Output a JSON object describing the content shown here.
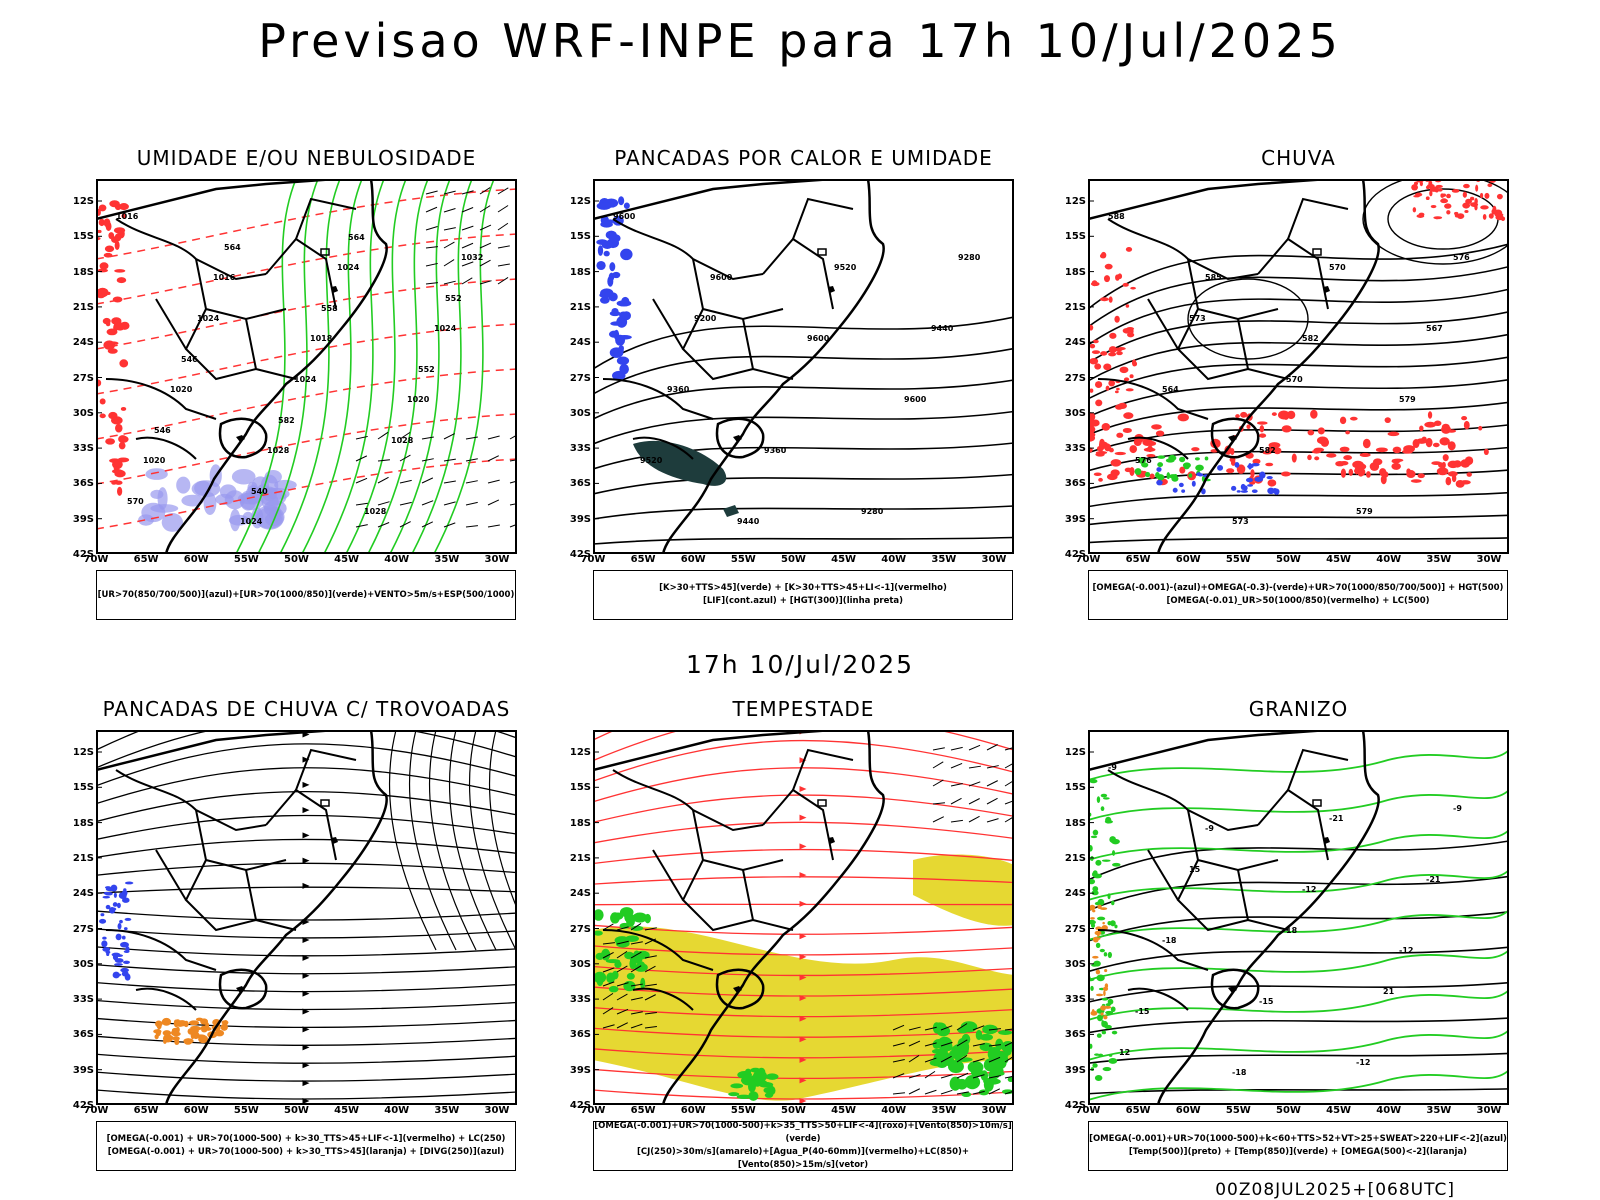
{
  "title": "Previsao WRF-INPE  para 17h 10/Jul/2025",
  "subtitle": "17h 10/Jul/2025",
  "footer": "00Z08JUL2025+[068UTC]",
  "lat_ticks": [
    "12S",
    "15S",
    "18S",
    "21S",
    "24S",
    "27S",
    "30S",
    "33S",
    "36S",
    "39S",
    "42S"
  ],
  "lon_ticks": [
    "70W",
    "65W",
    "60W",
    "55W",
    "50W",
    "45W",
    "40W",
    "35W",
    "30W"
  ],
  "panels": [
    {
      "title": "UMIDADE E/OU NEBULOSIDADE",
      "legend": [
        "[UR>70(850/700/500)](azul)+[UR>70(1000/850)](verde)+VENTO>5m/s+ESP(500/1000)"
      ],
      "labels": [
        "1016",
        "1016",
        "1018",
        "1020",
        "1020",
        "1024",
        "1024",
        "1024",
        "1020",
        "1028",
        "1028",
        "1032",
        "1024",
        "1024",
        "1028",
        "570",
        "564",
        "558",
        "552",
        "546",
        "540",
        "564",
        "552",
        "546",
        "582"
      ]
    },
    {
      "title": "PANCADAS POR CALOR E UMIDADE",
      "legend": [
        "[K>30+TTS>45](verde) + [K>30+TTS>45+LI<-1](vermelho)",
        "[LIF](cont.azul) + [HGT(300)](linha preta)"
      ],
      "labels": [
        "9600",
        "9600",
        "9600",
        "9600",
        "9520",
        "9440",
        "9520",
        "9440",
        "9360",
        "9360",
        "9280",
        "9280",
        "9200"
      ]
    },
    {
      "title": "CHUVA",
      "legend": [
        "[OMEGA(-0.001)-(azul)+OMEGA(-0.3)-(verde)+UR>70(1000/850/700/500)] + HGT(500)",
        "[OMEGA(-0.01)_UR>50(1000/850)(vermelho) + LC(500)"
      ],
      "labels": [
        "588",
        "585",
        "582",
        "579",
        "576",
        "573",
        "570",
        "567",
        "564",
        "582",
        "579",
        "576",
        "573",
        "570"
      ]
    },
    {
      "title": "PANCADAS DE CHUVA C/ TROVOADAS",
      "legend": [
        "[OMEGA(-0.001) + UR>70(1000-500) + k>30_TTS>45+LIF<-1](vermelho) + LC(250)",
        "[OMEGA(-0.001) + UR>70(1000-500) + k>30_TTS>45](laranja) + [DIVG(250)](azul)"
      ],
      "labels": []
    },
    {
      "title": "TEMPESTADE",
      "legend": [
        "[OMEGA(-0.001)+UR>70(1000-500)+k>35_TTS>50+LIF<-4](roxo)+[Vento(850)>10m/s](verde)",
        "[CJ(250)>30m/s](amarelo)+[Agua_P(40-60mm)](vermelho)+LC(850)+[Vento(850)>15m/s](vetor)"
      ],
      "labels": []
    },
    {
      "title": "GRANIZO",
      "legend": [
        "[OMEGA(-0.001)+UR>70(1000-500)+k<60+TTS>52+VT>25+SWEAT>220+LIF<-2](azul)",
        "[Temp(500)](preto) + [Temp(850)](verde) + [OMEGA(500)<-2](laranja)"
      ],
      "labels": [
        "-9",
        "-9",
        "-12",
        "-12",
        "-15",
        "-18",
        "-21",
        "-21",
        "-18",
        "-15",
        "-12",
        "-9",
        "15",
        "18",
        "21",
        "12"
      ]
    }
  ],
  "colors": {
    "background": "#ffffff",
    "border": "#000000",
    "green": "#22cc22",
    "red": "#ff3333",
    "blue": "#3344ee",
    "orange": "#ee8822",
    "yellow": "#e6d832",
    "dark_teal": "#1e3c3c",
    "light_blue": "#9999ee"
  }
}
